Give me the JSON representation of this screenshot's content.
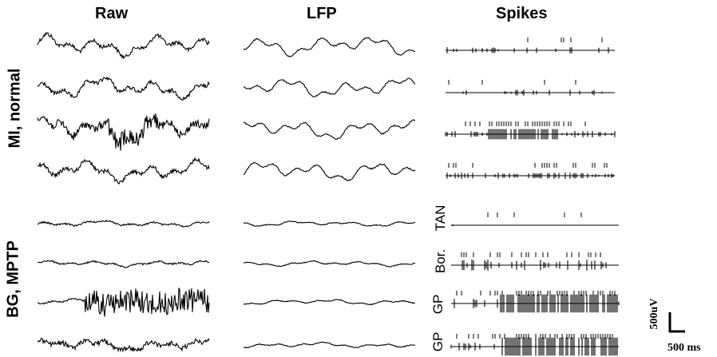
{
  "columns": {
    "raw": "Raw",
    "lfp": "LFP",
    "spikes": "Spikes"
  },
  "groups": {
    "normal": "MI, normal",
    "mptp": "BG, MPTP"
  },
  "cell_labels": {
    "tan": "TAN",
    "bor": "Bor.",
    "gp1": "GP",
    "gp2": "GP"
  },
  "scale_bar": {
    "voltage": "500uV",
    "time": "500 ms"
  },
  "trace_color": "#000000"
}
